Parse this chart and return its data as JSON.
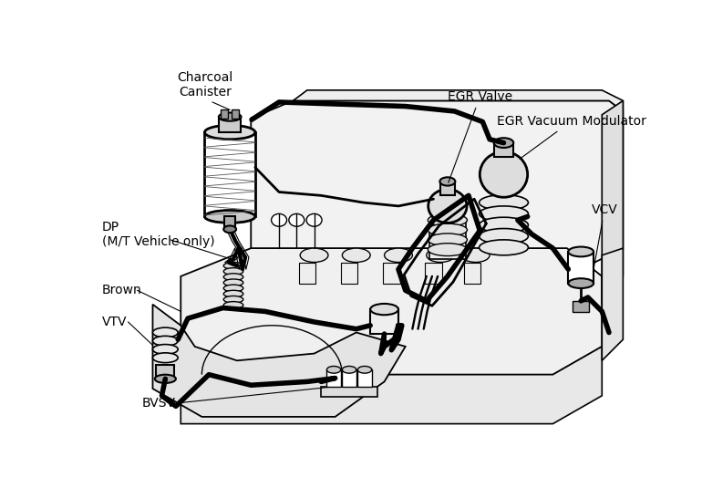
{
  "bg_color": "#ffffff",
  "labels": {
    "charcoal_canister": "Charcoal\nCanister",
    "egr_valve": "EGR Valve",
    "egr_vacuum_modulator": "EGR Vacuum Modulator",
    "vcv": "VCV",
    "dp": "DP\n(M/T Vehicle only)",
    "brown": "Brown",
    "vtv": "VTV",
    "bvsv": "BVSV"
  },
  "annotation_fontsize": 10
}
